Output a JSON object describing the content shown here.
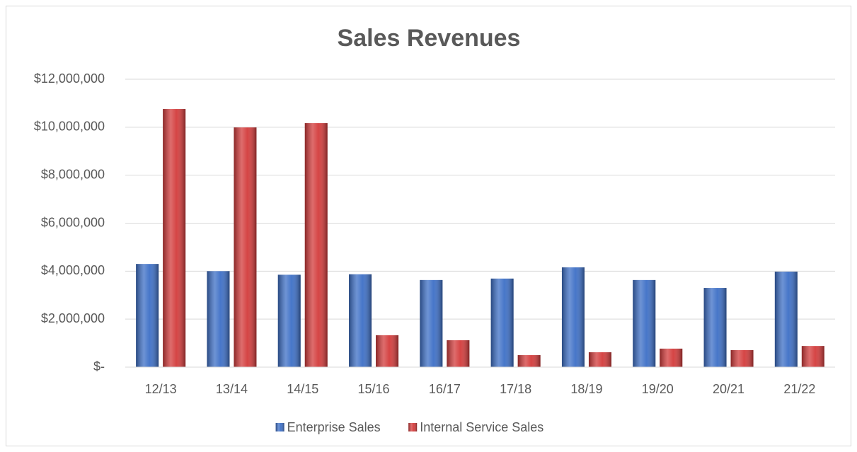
{
  "chart_data": {
    "type": "bar",
    "title": "Sales Revenues",
    "categories": [
      "12/13",
      "13/14",
      "14/15",
      "15/16",
      "16/17",
      "17/18",
      "18/19",
      "19/20",
      "20/21",
      "21/22"
    ],
    "series": [
      {
        "name": "Enterprise Sales",
        "color": "#3d6fc6",
        "values": [
          4300000,
          4000000,
          3850000,
          3870000,
          3630000,
          3690000,
          4160000,
          3630000,
          3300000,
          3980000
        ]
      },
      {
        "name": "Internal Service Sales",
        "color": "#d33b3b",
        "values": [
          10760000,
          9990000,
          10170000,
          1330000,
          1120000,
          500000,
          620000,
          770000,
          710000,
          880000
        ]
      }
    ],
    "ylim": [
      0,
      12000000
    ],
    "yticks": [
      {
        "value": 0,
        "label": "$-"
      },
      {
        "value": 2000000,
        "label": "$2,000,000"
      },
      {
        "value": 4000000,
        "label": "$4,000,000"
      },
      {
        "value": 6000000,
        "label": "$6,000,000"
      },
      {
        "value": 8000000,
        "label": "$8,000,000"
      },
      {
        "value": 10000000,
        "label": "$10,000,000"
      },
      {
        "value": 12000000,
        "label": "$12,000,000"
      }
    ],
    "grid": true,
    "legend": "bottom"
  }
}
